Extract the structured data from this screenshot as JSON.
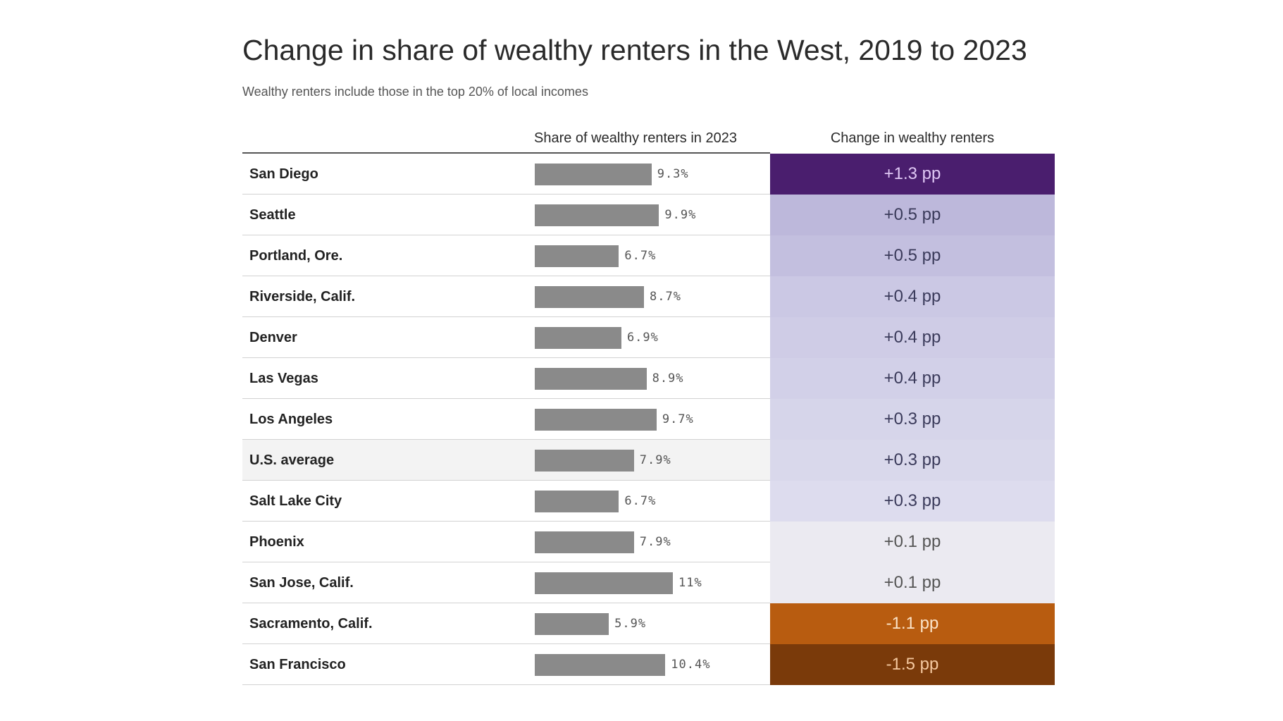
{
  "chart_data": {
    "type": "table",
    "title": "Change in share of wealthy renters in the West, 2019 to 2023",
    "subtitle": "Wealthy renters include those in the top 20% of local incomes",
    "columns": [
      "Share of wealthy renters in 2023",
      "Change in wealthy renters"
    ],
    "share_max": 11,
    "rows": [
      {
        "city": "San Diego",
        "share": 9.3,
        "share_label": "9.3%",
        "change": 1.3,
        "change_label": "+1.3 pp",
        "fill": "#4a1e6e",
        "text": "#e0c8f5"
      },
      {
        "city": "Seattle",
        "share": 9.9,
        "share_label": "9.9%",
        "change": 0.5,
        "change_label": "+0.5 pp",
        "fill": "#bdb8db",
        "text": "#3a3a5a"
      },
      {
        "city": "Portland, Ore.",
        "share": 6.7,
        "share_label": "6.7%",
        "change": 0.5,
        "change_label": "+0.5 pp",
        "fill": "#c3bfdf",
        "text": "#3a3a5a"
      },
      {
        "city": "Riverside, Calif.",
        "share": 8.7,
        "share_label": "8.7%",
        "change": 0.4,
        "change_label": "+0.4 pp",
        "fill": "#cbc8e4",
        "text": "#3a3a5a"
      },
      {
        "city": "Denver",
        "share": 6.9,
        "share_label": "6.9%",
        "change": 0.4,
        "change_label": "+0.4 pp",
        "fill": "#cfcce6",
        "text": "#3a3a5a"
      },
      {
        "city": "Las Vegas",
        "share": 8.9,
        "share_label": "8.9%",
        "change": 0.4,
        "change_label": "+0.4 pp",
        "fill": "#d2d0e8",
        "text": "#3a3a5a"
      },
      {
        "city": "Los Angeles",
        "share": 9.7,
        "share_label": "9.7%",
        "change": 0.3,
        "change_label": "+0.3 pp",
        "fill": "#d6d5ea",
        "text": "#3a3a5a"
      },
      {
        "city": "U.S. average",
        "share": 7.9,
        "share_label": "7.9%",
        "change": 0.3,
        "change_label": "+0.3 pp",
        "fill": "#d9d8eb",
        "text": "#3a3a5a",
        "highlight": true
      },
      {
        "city": "Salt Lake City",
        "share": 6.7,
        "share_label": "6.7%",
        "change": 0.3,
        "change_label": "+0.3 pp",
        "fill": "#dddcee",
        "text": "#3a3a5a"
      },
      {
        "city": "Phoenix",
        "share": 7.9,
        "share_label": "7.9%",
        "change": 0.1,
        "change_label": "+0.1 pp",
        "fill": "#ebeaf1",
        "text": "#555555"
      },
      {
        "city": "San Jose, Calif.",
        "share": 11,
        "share_label": "11%",
        "change": 0.1,
        "change_label": "+0.1 pp",
        "fill": "#ebeaf1",
        "text": "#555555"
      },
      {
        "city": "Sacramento, Calif.",
        "share": 5.9,
        "share_label": "5.9%",
        "change": -1.1,
        "change_label": "-1.1 pp",
        "fill": "#b85c10",
        "text": "#fbe3c8"
      },
      {
        "city": "San Francisco",
        "share": 10.4,
        "share_label": "10.4%",
        "change": -1.5,
        "change_label": "-1.5 pp",
        "fill": "#7a3a0a",
        "text": "#f5c9a0"
      }
    ],
    "colors": {
      "bar": "#8a8a8a",
      "highlight_row": "#f3f3f3"
    }
  }
}
